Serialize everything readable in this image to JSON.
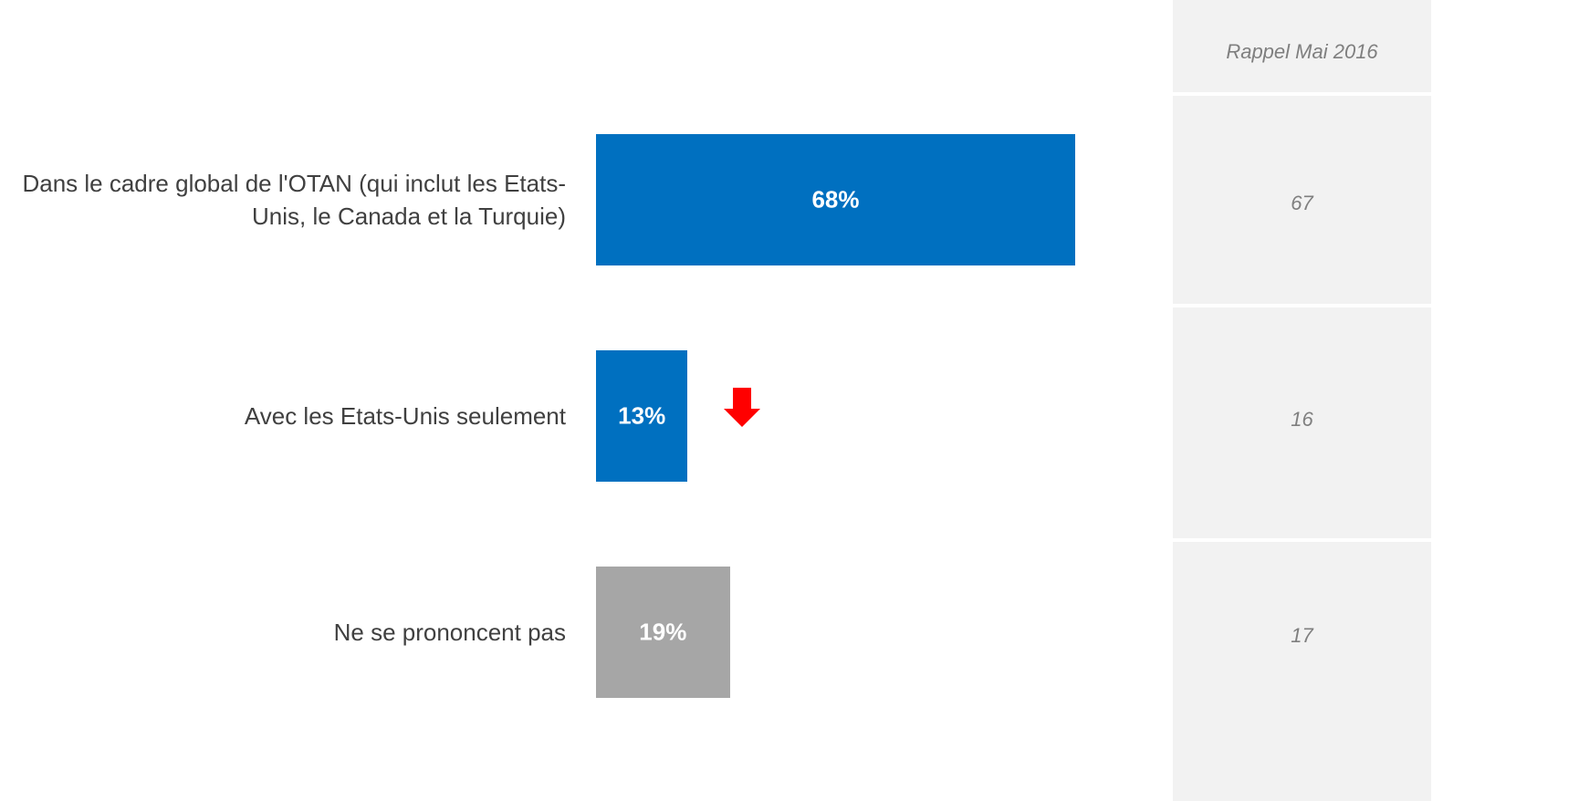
{
  "chart_data": {
    "type": "bar",
    "orientation": "horizontal",
    "categories": [
      "Dans le cadre global de l'OTAN (qui inclut les Etats-Unis, le Canada et la Turquie)",
      "Avec les Etats-Unis seulement",
      "Ne se prononcent pas"
    ],
    "values": [
      68,
      13,
      19
    ],
    "value_labels": [
      "68%",
      "13%",
      "19%"
    ],
    "colors": [
      "#0070c0",
      "#0070c0",
      "#a6a6a6"
    ],
    "reference": {
      "title": "Rappel Mai 2016",
      "values": [
        67,
        16,
        17
      ]
    }
  }
}
